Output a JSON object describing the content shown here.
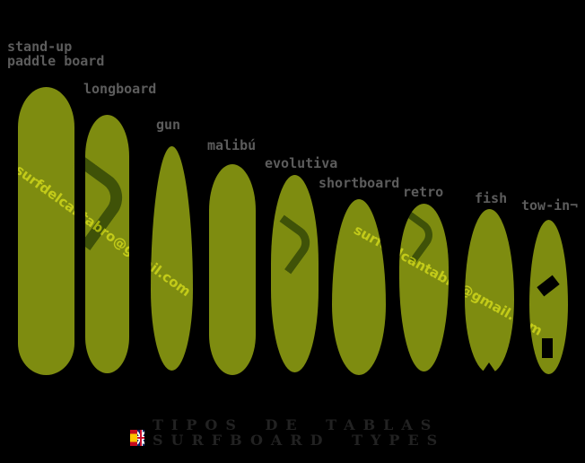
{
  "diagram": {
    "kind": "surfboard-types-infographic",
    "background_color": "#000000",
    "board_color": "#7e8c10",
    "label_color": "#5c5c5c",
    "title_color": "#222222"
  },
  "boards": [
    {
      "id": "stand-up-paddle-board",
      "label": "stand-up\npaddle board"
    },
    {
      "id": "longboard",
      "label": "longboard"
    },
    {
      "id": "gun",
      "label": "gun"
    },
    {
      "id": "malibu",
      "label": "malibú"
    },
    {
      "id": "evolutiva",
      "label": "evolutiva"
    },
    {
      "id": "shortboard",
      "label": "shortboard"
    },
    {
      "id": "retro",
      "label": "retro"
    },
    {
      "id": "fish",
      "label": "fish"
    },
    {
      "id": "tow-in",
      "label": "tow-in¬"
    }
  ],
  "watermark": {
    "text": "surfdelcantabro@gmail.com"
  },
  "title": {
    "line1": "TIPOS DE TABLAS",
    "line2": "SURFBOARD TYPES"
  },
  "flag": {
    "name": "spain-uk-combined-flag"
  }
}
